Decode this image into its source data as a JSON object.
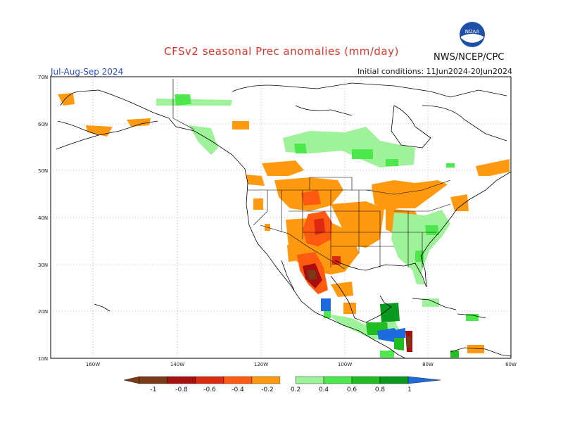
{
  "title": "CFSv2 seasonal Prec anomalies (mm/day)",
  "period": "Jul-Aug-Sep 2024",
  "initial_conditions": "Initial conditions: 11Jun2024-20Jun2024",
  "agency": "NWS/NCEP/CPC",
  "logo_text": "NOAA",
  "lat_labels": [
    "70N",
    "60N",
    "50N",
    "40N",
    "30N",
    "20N",
    "10N"
  ],
  "lon_labels": [
    "160W",
    "140W",
    "120W",
    "100W",
    "80W",
    "60W"
  ],
  "colorbar": {
    "labels": [
      "-1",
      "-0.8",
      "-0.6",
      "-0.4",
      "-0.2",
      "0.2",
      "0.4",
      "0.6",
      "0.8",
      "1"
    ],
    "colors": [
      "#7a3a18",
      "#a50f0f",
      "#dd2a10",
      "#ff5a10",
      "#ff9a10",
      "#ffffff",
      "#9ef29a",
      "#4de84b",
      "#20be20",
      "#0a9a1f",
      "#1e6be0"
    ]
  }
}
